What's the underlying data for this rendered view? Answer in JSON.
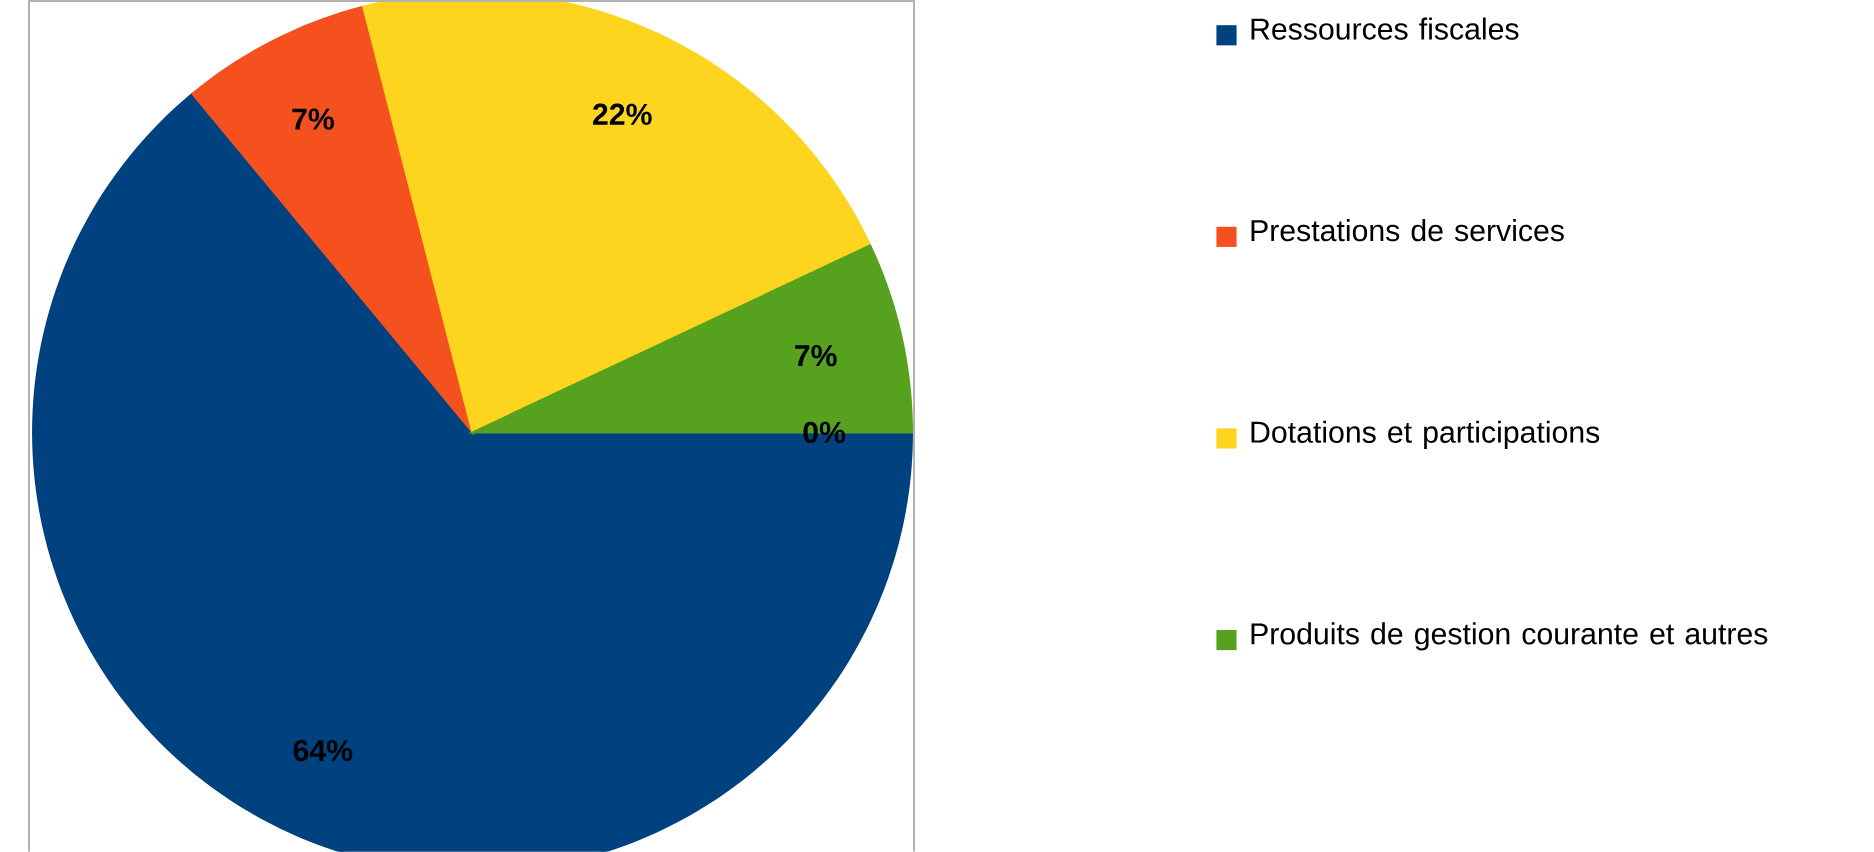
{
  "chart_data": {
    "type": "pie",
    "categories": [
      "Ressources fiscales",
      "Prestations de services",
      "Dotations et participations",
      "Produits de gestion courante et autres",
      null
    ],
    "values": [
      64,
      7,
      22,
      7,
      0
    ],
    "colors": [
      "#00427f",
      "#f4511e",
      "#fdd51f",
      "#56a21f",
      "#9dc3e6"
    ],
    "value_labels": [
      "64%",
      "7%",
      "22%",
      "7%",
      "0%"
    ],
    "legend": "right"
  }
}
